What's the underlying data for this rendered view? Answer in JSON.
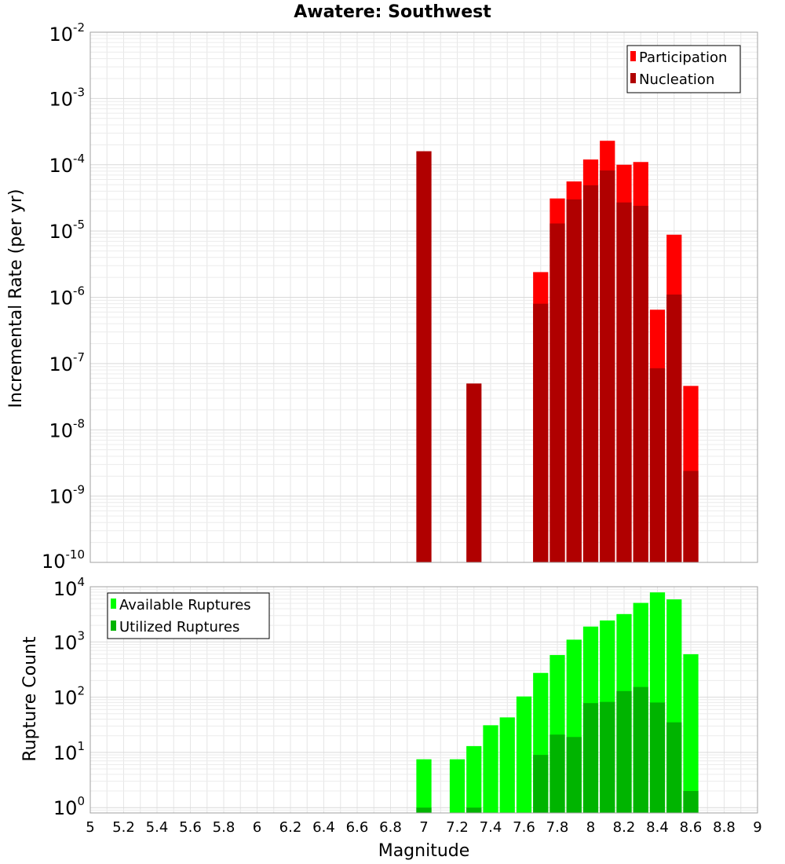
{
  "chart_data": [
    {
      "type": "bar",
      "title": "Awatere: Southwest",
      "xlabel": "",
      "ylabel": "Incremental Rate (per yr)",
      "yscale": "log",
      "ylim": [
        1e-10,
        0.01
      ],
      "xlim": [
        5,
        9
      ],
      "bin_width": 0.1,
      "grid": true,
      "legend_position": "top-right",
      "y_tick_exponents": [
        "-2",
        "-3",
        "-4",
        "-5",
        "-6",
        "-7",
        "-8",
        "-9",
        "-10"
      ],
      "series": [
        {
          "name": "Participation",
          "color": "#ff0000",
          "x": [
            7.7,
            7.8,
            7.9,
            8.0,
            8.1,
            8.2,
            8.3,
            8.4,
            8.5,
            8.6
          ],
          "values": [
            2.4e-06,
            3.1e-05,
            5.6e-05,
            0.00012,
            0.00023,
            0.0001,
            0.00011,
            6.5e-07,
            8.8e-06,
            4.6e-08
          ]
        },
        {
          "name": "Nucleation",
          "color": "#b00000",
          "x": [
            7.0,
            7.3,
            7.7,
            7.8,
            7.9,
            8.0,
            8.1,
            8.2,
            8.3,
            8.4,
            8.5,
            8.6
          ],
          "values": [
            0.00016,
            5e-08,
            8e-07,
            1.3e-05,
            3e-05,
            4.9e-05,
            8.2e-05,
            2.7e-05,
            2.4e-05,
            8.5e-08,
            1.1e-06,
            2.4e-09
          ]
        }
      ]
    },
    {
      "type": "bar",
      "title": "",
      "xlabel": "Magnitude",
      "ylabel": "Rupture Count",
      "yscale": "log",
      "ylim": [
        0.8,
        10000
      ],
      "xlim": [
        5,
        9
      ],
      "bin_width": 0.1,
      "grid": true,
      "legend_position": "top-left",
      "y_tick_exponents": [
        "4",
        "3",
        "2",
        "1",
        "0"
      ],
      "x_ticks": [
        "5",
        "5.2",
        "5.4",
        "5.6",
        "5.8",
        "6",
        "6.2",
        "6.4",
        "6.6",
        "6.8",
        "7",
        "7.2",
        "7.4",
        "7.6",
        "7.8",
        "8",
        "8.2",
        "8.4",
        "8.6",
        "8.8",
        "9"
      ],
      "series": [
        {
          "name": "Available Ruptures",
          "color": "#00ff00",
          "x": [
            7.0,
            7.2,
            7.3,
            7.4,
            7.5,
            7.6,
            7.7,
            7.8,
            7.9,
            8.0,
            8.1,
            8.2,
            8.3,
            8.4,
            8.5,
            8.6
          ],
          "values": [
            7.5,
            7.5,
            13,
            31,
            43,
            103,
            275,
            580,
            1100,
            1900,
            2450,
            3200,
            5100,
            7900,
            5900,
            600
          ]
        },
        {
          "name": "Utilized Ruptures",
          "color": "#00b400",
          "x": [
            7.0,
            7.3,
            7.7,
            7.8,
            7.9,
            8.0,
            8.1,
            8.2,
            8.3,
            8.4,
            8.5,
            8.6
          ],
          "values": [
            1,
            1,
            9,
            21,
            19,
            78,
            82,
            129,
            153,
            80,
            35,
            2
          ]
        }
      ]
    }
  ]
}
